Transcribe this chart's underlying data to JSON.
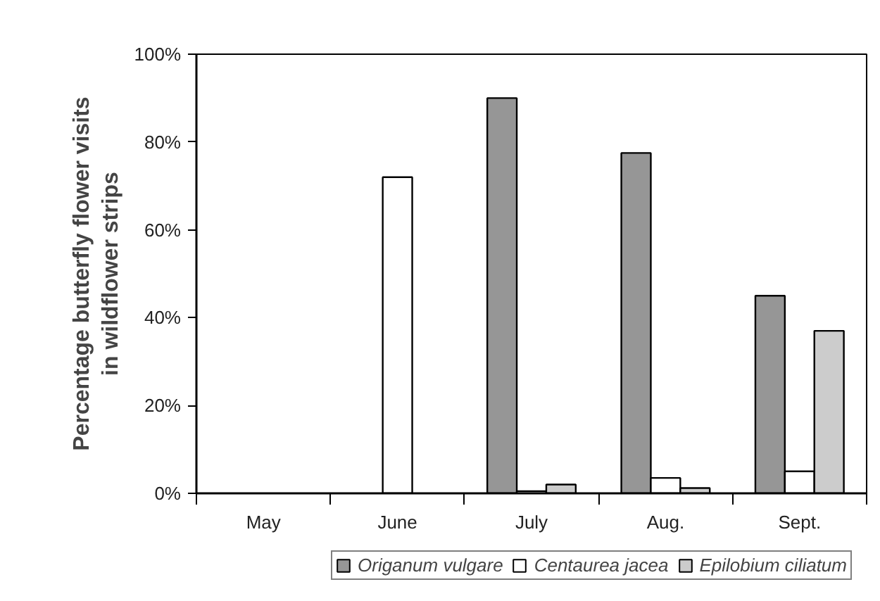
{
  "chart_data": {
    "type": "bar",
    "ylabel": "Percentage butterfly flower visits\nin wildflower strips",
    "categories": [
      "May",
      "June",
      "July",
      "Aug.",
      "Sept."
    ],
    "series": [
      {
        "name": "Origanum vulgare",
        "color": "#969696",
        "values": [
          null,
          null,
          90,
          77.5,
          45
        ]
      },
      {
        "name": "Centaurea jacea",
        "color": "#ffffff",
        "values": [
          null,
          72,
          0.5,
          3.5,
          5
        ]
      },
      {
        "name": "Epilobium ciliatum",
        "color": "#cccccc",
        "values": [
          null,
          null,
          2,
          1.2,
          37
        ]
      }
    ],
    "ylim": [
      0,
      100
    ],
    "yticks": [
      {
        "value": 0,
        "label": "0%"
      },
      {
        "value": 20,
        "label": "20%"
      },
      {
        "value": 40,
        "label": "40%"
      },
      {
        "value": 60,
        "label": "60%"
      },
      {
        "value": 80,
        "label": "80%"
      },
      {
        "value": 100,
        "label": "100%"
      }
    ],
    "grid": false,
    "legend": "bottom"
  }
}
